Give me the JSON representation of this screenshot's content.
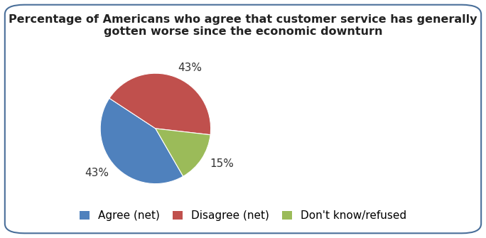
{
  "chart_data": {
    "type": "pie",
    "title": "Percentage of Americans who agree that customer service has generally gotten worse since the economic downturn",
    "categories": [
      "Agree (net)",
      "Disagree (net)",
      "Don't know/refused"
    ],
    "values": [
      43,
      43,
      15
    ],
    "value_labels": [
      "43%",
      "43%",
      "15%"
    ],
    "colors": [
      "#4f81bd",
      "#c0504d",
      "#9bbb59"
    ],
    "legend": "lower center"
  }
}
